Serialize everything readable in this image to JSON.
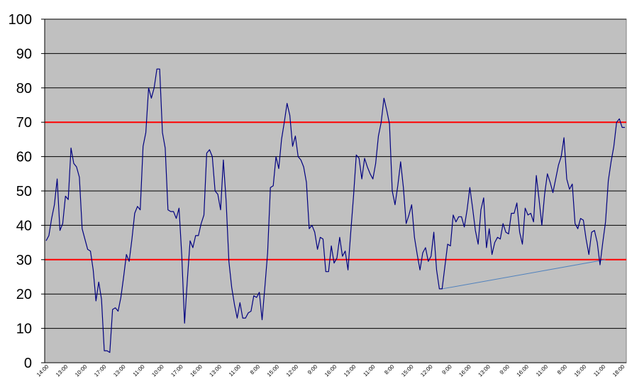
{
  "chart_data": {
    "type": "line",
    "title": "",
    "xlabel": "",
    "ylabel": "",
    "ylim": [
      0,
      100
    ],
    "y_ticks": [
      "0",
      "10",
      "20",
      "30",
      "40",
      "50",
      "60",
      "70",
      "80",
      "90",
      "100"
    ],
    "x_tick_labels": [
      "14:00",
      "13:00",
      "10:00",
      "17:00",
      "13:00",
      "11:00",
      "10:00",
      "17:00",
      "16:00",
      "13:00",
      "11:00",
      "8:00",
      "15:00",
      "12:00",
      "9:00",
      "16:00",
      "13:00",
      "11:00",
      "8:00",
      "15:00",
      "12:00",
      "9:00",
      "16:00",
      "13:00",
      "9:00",
      "16:00",
      "11:00",
      "8:00",
      "15:00",
      "11:00",
      "18:00"
    ],
    "grid": true,
    "plot_background": "#c0c0c0",
    "series": [
      {
        "color": "#000080",
        "values": [
          35.5,
          37,
          42,
          46,
          53.5,
          38.5,
          40.5,
          48.5,
          47.5,
          62.5,
          58,
          57,
          54,
          39,
          36,
          33,
          32.5,
          27,
          18,
          23.5,
          18.5,
          3.5,
          3.5,
          3,
          15.5,
          16,
          15,
          19,
          25,
          31.5,
          29.5,
          36,
          43.5,
          45.5,
          44.5,
          63,
          67,
          80,
          77,
          80,
          85.5,
          85.5,
          67,
          62.5,
          44.5,
          44,
          44,
          42,
          45,
          31,
          11.5,
          24,
          35.5,
          33.5,
          37,
          37,
          40.5,
          43,
          61,
          62,
          60,
          50,
          49,
          44.5,
          59,
          47,
          29.5,
          22,
          17,
          13,
          17.5,
          13,
          13,
          14.5,
          15,
          19.5,
          19,
          20.5,
          12.5,
          22,
          32,
          51,
          51.5,
          60,
          56.5,
          65,
          70,
          75.5,
          72,
          63,
          66,
          60,
          59,
          57,
          52.5,
          39,
          40,
          38,
          33,
          36.5,
          36,
          26.5,
          26.5,
          34,
          29,
          30.5,
          36.5,
          31,
          32.5,
          27,
          38,
          48.5,
          60.5,
          59.5,
          53.5,
          59.5,
          57,
          55,
          53.5,
          58,
          66,
          70,
          77,
          73.5,
          69.5,
          50,
          46,
          51.5,
          58.5,
          51,
          40.5,
          43,
          46,
          36.5,
          31.5,
          27,
          32,
          33.5,
          29.5,
          31,
          38,
          27,
          21.5,
          21.5,
          28,
          34.5,
          34,
          43,
          41,
          42.5,
          42.5,
          39.5,
          44.5,
          51,
          45,
          38.5,
          34.5,
          44.5,
          48,
          33.5,
          39,
          31.5,
          35,
          36.5,
          36,
          40.5,
          38,
          37.5,
          43.5,
          43.5,
          46.5,
          38,
          34.5,
          45,
          43,
          43.5,
          41,
          54.5,
          47.5,
          40,
          49,
          55,
          52.5,
          49.5,
          53.5,
          57.5,
          60,
          65.5,
          53.5,
          50.5,
          52,
          40.5,
          39,
          42,
          41.5,
          36,
          31.5,
          38,
          38.5,
          35,
          28.5,
          35,
          41,
          53,
          58.5,
          63,
          70,
          71,
          68.5,
          68.5
        ]
      }
    ],
    "reference_lines": [
      {
        "y": 70,
        "color": "#ff0000"
      },
      {
        "y": 30,
        "color": "#ff0000"
      }
    ],
    "trend_line": {
      "from_index": 143,
      "from_y": 21.5,
      "to_index": 202,
      "to_y": 30,
      "color": "#4f81bd"
    }
  }
}
